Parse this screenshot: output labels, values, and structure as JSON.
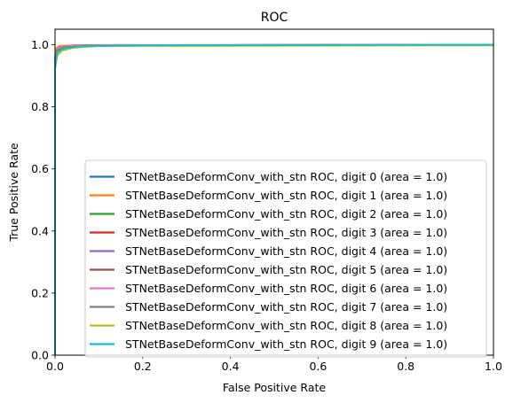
{
  "chart_data": {
    "type": "line",
    "title": "ROC",
    "xlabel": "False Positive Rate",
    "ylabel": "True Positive Rate",
    "xlim": [
      0,
      1
    ],
    "ylim": [
      0,
      1.05
    ],
    "xticks": [
      "0.0",
      "0.2",
      "0.4",
      "0.6",
      "0.8",
      "1.0"
    ],
    "yticks": [
      "0.0",
      "0.2",
      "0.4",
      "0.6",
      "0.8",
      "1.0"
    ],
    "grid": false,
    "legend_position": "lower right",
    "series": [
      {
        "name": "STNetBaseDeformConv_with_stn ROC, digit 0 (area = 1.0)",
        "color": "#1f77b4",
        "points": [
          [
            0,
            0
          ],
          [
            0,
            0.93
          ],
          [
            0.005,
            0.975
          ],
          [
            0.015,
            0.985
          ],
          [
            0.03,
            0.99
          ],
          [
            0.06,
            0.995
          ],
          [
            0.12,
            0.998
          ],
          [
            1,
            1
          ]
        ]
      },
      {
        "name": "STNetBaseDeformConv_with_stn ROC, digit 1 (area = 1.0)",
        "color": "#ff7f0e",
        "points": [
          [
            0,
            0
          ],
          [
            0,
            0.96
          ],
          [
            0.004,
            0.99
          ],
          [
            0.01,
            0.996
          ],
          [
            0.05,
            0.999
          ],
          [
            1,
            1
          ]
        ]
      },
      {
        "name": "STNetBaseDeformConv_with_stn ROC, digit 2 (area = 1.0)",
        "color": "#2ca02c",
        "points": [
          [
            0,
            0
          ],
          [
            0,
            0.95
          ],
          [
            0.006,
            0.985
          ],
          [
            0.02,
            0.993
          ],
          [
            0.06,
            0.997
          ],
          [
            1,
            1
          ]
        ]
      },
      {
        "name": "STNetBaseDeformConv_with_stn ROC, digit 3 (area = 1.0)",
        "color": "#d62728",
        "points": [
          [
            0,
            0
          ],
          [
            0,
            0.95
          ],
          [
            0.005,
            0.985
          ],
          [
            0.02,
            0.994
          ],
          [
            0.07,
            0.998
          ],
          [
            1,
            1
          ]
        ]
      },
      {
        "name": "STNetBaseDeformConv_with_stn ROC, digit 4 (area = 1.0)",
        "color": "#9467bd",
        "points": [
          [
            0,
            0
          ],
          [
            0,
            0.94
          ],
          [
            0.006,
            0.98
          ],
          [
            0.02,
            0.992
          ],
          [
            0.08,
            0.997
          ],
          [
            1,
            1
          ]
        ]
      },
      {
        "name": "STNetBaseDeformConv_with_stn ROC, digit 5 (area = 1.0)",
        "color": "#8c564b",
        "points": [
          [
            0,
            0
          ],
          [
            0,
            0.95
          ],
          [
            0.005,
            0.985
          ],
          [
            0.02,
            0.993
          ],
          [
            0.06,
            0.997
          ],
          [
            1,
            1
          ]
        ]
      },
      {
        "name": "STNetBaseDeformConv_with_stn ROC, digit 6 (area = 1.0)",
        "color": "#e377c2",
        "points": [
          [
            0,
            0
          ],
          [
            0,
            0.95
          ],
          [
            0.005,
            0.986
          ],
          [
            0.015,
            0.994
          ],
          [
            0.05,
            0.998
          ],
          [
            1,
            1
          ]
        ]
      },
      {
        "name": "STNetBaseDeformConv_with_stn ROC, digit 7 (area = 1.0)",
        "color": "#7f7f7f",
        "points": [
          [
            0,
            0
          ],
          [
            0,
            0.94
          ],
          [
            0.005,
            0.982
          ],
          [
            0.02,
            0.992
          ],
          [
            0.07,
            0.997
          ],
          [
            1,
            1
          ]
        ]
      },
      {
        "name": "STNetBaseDeformConv_with_stn ROC, digit 8 (area = 1.0)",
        "color": "#bcbd22",
        "points": [
          [
            0,
            0
          ],
          [
            0,
            0.92
          ],
          [
            0.005,
            0.965
          ],
          [
            0.015,
            0.98
          ],
          [
            0.04,
            0.99
          ],
          [
            0.1,
            0.996
          ],
          [
            1,
            0.998
          ]
        ]
      },
      {
        "name": "STNetBaseDeformConv_with_stn ROC, digit 9 (area = 1.0)",
        "color": "#17becf",
        "points": [
          [
            0,
            0
          ],
          [
            0,
            0.93
          ],
          [
            0.005,
            0.975
          ],
          [
            0.02,
            0.988
          ],
          [
            0.06,
            0.995
          ],
          [
            0.2,
            0.998
          ],
          [
            1,
            1
          ]
        ]
      }
    ]
  }
}
